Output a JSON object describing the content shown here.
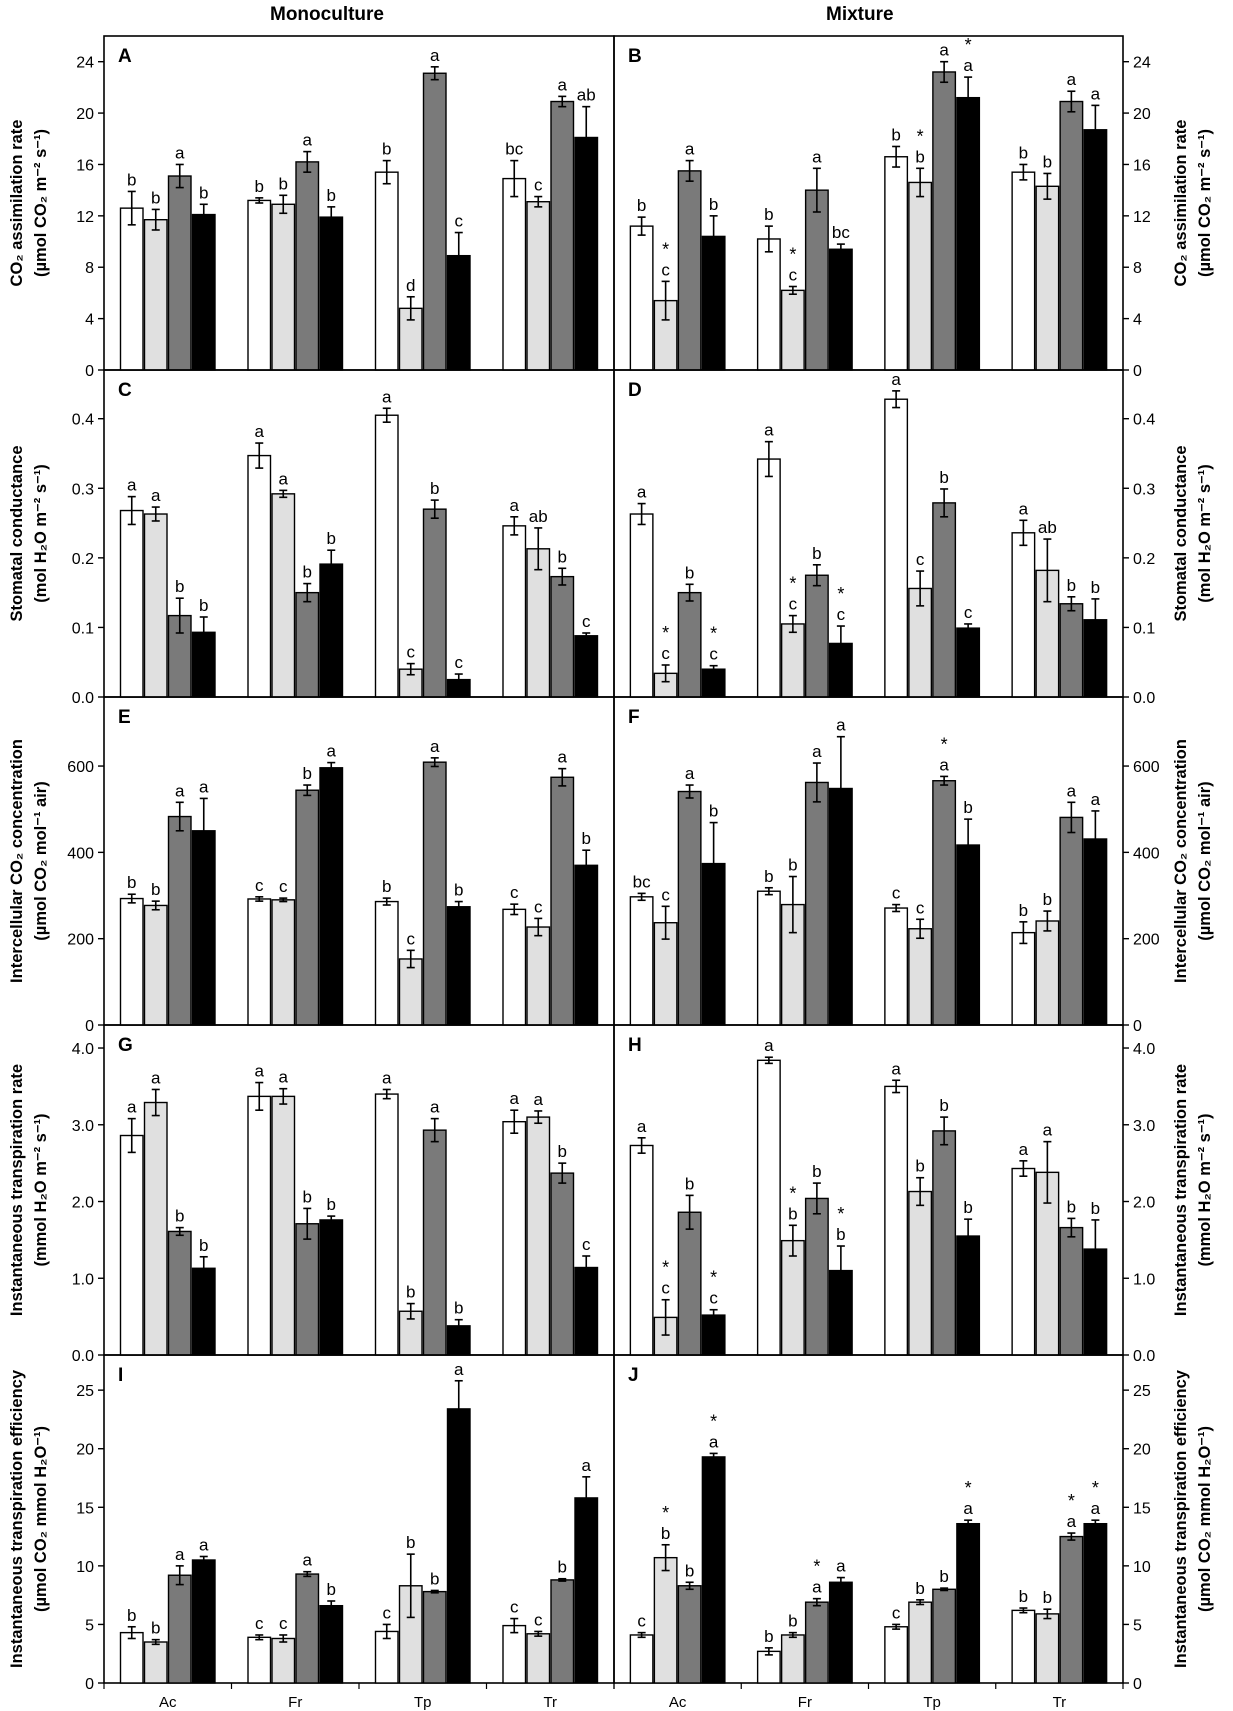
{
  "columns": [
    "Monoculture",
    "Mixture"
  ],
  "species": [
    "Ac",
    "Fr",
    "Tp",
    "Tr"
  ],
  "colors": {
    "t1": "#ffffff",
    "t2": "#e0e0e0",
    "t3": "#7a7a7a",
    "t4": "#000000",
    "axis": "#000000"
  },
  "rows": [
    {
      "ylabel": [
        "CO₂ assimilation rate",
        "(µmol CO₂ m⁻² s⁻¹)"
      ],
      "ylim": [
        0,
        26
      ],
      "ticks": [
        0,
        4,
        8,
        12,
        16,
        20,
        24
      ],
      "tick_labels": [
        "0",
        "4",
        "8",
        "12",
        "16",
        "20",
        "24"
      ]
    },
    {
      "ylabel": [
        "Stomatal conductance",
        "(mol H₂O m⁻² s⁻¹)"
      ],
      "ylim": [
        0,
        0.47
      ],
      "ticks": [
        0,
        0.1,
        0.2,
        0.3,
        0.4
      ],
      "tick_labels": [
        "0.0",
        "0.1",
        "0.2",
        "0.3",
        "0.4"
      ]
    },
    {
      "ylabel": [
        "Intercellular CO₂ concentration",
        "(µmol CO₂ mol⁻¹ air)"
      ],
      "ylim": [
        0,
        760
      ],
      "ticks": [
        0,
        200,
        400,
        600
      ],
      "tick_labels": [
        "0",
        "200",
        "400",
        "600"
      ]
    },
    {
      "ylabel": [
        "Instantaneous transpiration rate",
        "(mmol H₂O m⁻² s⁻¹)"
      ],
      "ylim": [
        0,
        4.3
      ],
      "ticks": [
        0,
        1,
        2,
        3,
        4
      ],
      "tick_labels": [
        "0.0",
        "1.0",
        "2.0",
        "3.0",
        "4.0"
      ]
    },
    {
      "ylabel": [
        "Instantaneous transpiration efficiency",
        "(µmol CO₂ mmol H₂O⁻¹)"
      ],
      "ylim": [
        0,
        28
      ],
      "ticks": [
        0,
        5,
        10,
        15,
        20,
        25
      ],
      "tick_labels": [
        "0",
        "5",
        "10",
        "15",
        "20",
        "25"
      ]
    }
  ],
  "chart_data": [
    {
      "type": "bar",
      "panel": "A",
      "row": 0,
      "col": 0,
      "categories": [
        "Ac",
        "Fr",
        "Tp",
        "Tr"
      ],
      "values": [
        [
          12.6,
          11.7,
          15.1,
          12.1
        ],
        [
          13.2,
          12.9,
          16.2,
          11.9
        ],
        [
          15.4,
          4.8,
          23.1,
          8.9
        ],
        [
          14.9,
          13.1,
          20.9,
          18.1
        ]
      ],
      "errors": [
        [
          1.3,
          0.8,
          0.9,
          0.8
        ],
        [
          0.2,
          0.7,
          0.8,
          0.8
        ],
        [
          0.9,
          0.9,
          0.5,
          1.8
        ],
        [
          1.4,
          0.4,
          0.4,
          2.4
        ]
      ],
      "letters": [
        [
          "b",
          "b",
          "a",
          "b"
        ],
        [
          "b",
          "b",
          "a",
          "b"
        ],
        [
          "b",
          "d",
          "a",
          "c"
        ],
        [
          "bc",
          "c",
          "a",
          "ab"
        ]
      ],
      "stars": [
        [
          "",
          "",
          "",
          ""
        ],
        [
          "",
          "",
          "",
          ""
        ],
        [
          "",
          "",
          "",
          ""
        ],
        [
          "",
          "",
          "",
          ""
        ]
      ]
    },
    {
      "type": "bar",
      "panel": "B",
      "row": 0,
      "col": 1,
      "categories": [
        "Ac",
        "Fr",
        "Tp",
        "Tr"
      ],
      "values": [
        [
          11.2,
          5.4,
          15.5,
          10.4
        ],
        [
          10.2,
          6.2,
          14.0,
          9.4
        ],
        [
          16.6,
          14.6,
          23.2,
          21.2
        ],
        [
          15.4,
          14.3,
          20.9,
          18.7
        ]
      ],
      "errors": [
        [
          0.7,
          1.5,
          0.8,
          1.6
        ],
        [
          1.0,
          0.3,
          1.7,
          0.4
        ],
        [
          0.8,
          1.1,
          0.8,
          1.6
        ],
        [
          0.6,
          1.0,
          0.8,
          1.9
        ]
      ],
      "letters": [
        [
          "b",
          "c",
          "a",
          "b"
        ],
        [
          "b",
          "c",
          "a",
          "bc"
        ],
        [
          "b",
          "b",
          "a",
          "a"
        ],
        [
          "b",
          "b",
          "a",
          "a"
        ]
      ],
      "stars": [
        [
          "",
          "*",
          "",
          ""
        ],
        [
          "",
          "*",
          "",
          ""
        ],
        [
          "",
          "*",
          "",
          "*"
        ],
        [
          "",
          "",
          "",
          ""
        ]
      ]
    },
    {
      "type": "bar",
      "panel": "C",
      "row": 1,
      "col": 0,
      "categories": [
        "Ac",
        "Fr",
        "Tp",
        "Tr"
      ],
      "values": [
        [
          0.268,
          0.263,
          0.117,
          0.093
        ],
        [
          0.347,
          0.292,
          0.15,
          0.191
        ],
        [
          0.405,
          0.04,
          0.27,
          0.025
        ],
        [
          0.246,
          0.213,
          0.173,
          0.088
        ]
      ],
      "errors": [
        [
          0.02,
          0.01,
          0.025,
          0.022
        ],
        [
          0.018,
          0.005,
          0.013,
          0.02
        ],
        [
          0.01,
          0.008,
          0.013,
          0.008
        ],
        [
          0.013,
          0.03,
          0.012,
          0.004
        ]
      ],
      "letters": [
        [
          "a",
          "a",
          "b",
          "b"
        ],
        [
          "a",
          "a",
          "b",
          "b"
        ],
        [
          "a",
          "c",
          "b",
          "c"
        ],
        [
          "a",
          "ab",
          "b",
          "c"
        ]
      ],
      "stars": [
        [
          "",
          "",
          "",
          ""
        ],
        [
          "",
          "",
          "",
          ""
        ],
        [
          "",
          "",
          "",
          ""
        ],
        [
          "",
          "",
          "",
          ""
        ]
      ]
    },
    {
      "type": "bar",
      "panel": "D",
      "row": 1,
      "col": 1,
      "categories": [
        "Ac",
        "Fr",
        "Tp",
        "Tr"
      ],
      "values": [
        [
          0.263,
          0.034,
          0.15,
          0.04
        ],
        [
          0.342,
          0.105,
          0.175,
          0.077
        ],
        [
          0.428,
          0.156,
          0.279,
          0.099
        ],
        [
          0.236,
          0.182,
          0.134,
          0.111
        ]
      ],
      "errors": [
        [
          0.015,
          0.012,
          0.012,
          0.005
        ],
        [
          0.025,
          0.012,
          0.015,
          0.025
        ],
        [
          0.012,
          0.025,
          0.02,
          0.006
        ],
        [
          0.018,
          0.045,
          0.01,
          0.03
        ]
      ],
      "letters": [
        [
          "a",
          "c",
          "b",
          "c"
        ],
        [
          "a",
          "c",
          "b",
          "c"
        ],
        [
          "a",
          "c",
          "b",
          "c"
        ],
        [
          "a",
          "ab",
          "b",
          "b"
        ]
      ],
      "stars": [
        [
          "",
          "*",
          "",
          "*"
        ],
        [
          "",
          "*",
          "",
          "*"
        ],
        [
          "",
          "",
          "",
          ""
        ],
        [
          "",
          "",
          "",
          ""
        ]
      ]
    },
    {
      "type": "bar",
      "panel": "E",
      "row": 2,
      "col": 0,
      "categories": [
        "Ac",
        "Fr",
        "Tp",
        "Tr"
      ],
      "values": [
        [
          293,
          277,
          483,
          450
        ],
        [
          292,
          290,
          544,
          596
        ],
        [
          286,
          153,
          609,
          274
        ],
        [
          268,
          227,
          574,
          370
        ]
      ],
      "errors": [
        [
          10,
          10,
          33,
          75
        ],
        [
          5,
          4,
          12,
          12
        ],
        [
          8,
          20,
          10,
          12
        ],
        [
          12,
          20,
          20,
          35
        ]
      ],
      "letters": [
        [
          "b",
          "b",
          "a",
          "a"
        ],
        [
          "c",
          "c",
          "b",
          "a"
        ],
        [
          "b",
          "c",
          "a",
          "b"
        ],
        [
          "c",
          "c",
          "a",
          "b"
        ]
      ],
      "stars": [
        [
          "",
          "",
          "",
          ""
        ],
        [
          "",
          "",
          "",
          ""
        ],
        [
          "",
          "",
          "",
          ""
        ],
        [
          "",
          "",
          "",
          ""
        ]
      ]
    },
    {
      "type": "bar",
      "panel": "F",
      "row": 2,
      "col": 1,
      "categories": [
        "Ac",
        "Fr",
        "Tp",
        "Tr"
      ],
      "values": [
        [
          297,
          237,
          541,
          374
        ],
        [
          310,
          279,
          562,
          548
        ],
        [
          271,
          223,
          566,
          417
        ],
        [
          214,
          241,
          481,
          431
        ]
      ],
      "errors": [
        [
          8,
          38,
          15,
          95
        ],
        [
          8,
          65,
          45,
          120
        ],
        [
          8,
          22,
          10,
          60
        ],
        [
          25,
          23,
          35,
          65
        ]
      ],
      "letters": [
        [
          "bc",
          "c",
          "a",
          "b"
        ],
        [
          "b",
          "b",
          "a",
          "a"
        ],
        [
          "c",
          "c",
          "a",
          "b"
        ],
        [
          "b",
          "b",
          "a",
          "a"
        ]
      ],
      "stars": [
        [
          "",
          "",
          "",
          ""
        ],
        [
          "",
          "",
          "",
          ""
        ],
        [
          "",
          "",
          "*",
          ""
        ],
        [
          "",
          "",
          "",
          ""
        ]
      ]
    },
    {
      "type": "bar",
      "panel": "G",
      "row": 3,
      "col": 0,
      "categories": [
        "Ac",
        "Fr",
        "Tp",
        "Tr"
      ],
      "values": [
        [
          2.86,
          3.29,
          1.61,
          1.13
        ],
        [
          3.37,
          3.37,
          1.71,
          1.76
        ],
        [
          3.4,
          0.57,
          2.93,
          0.38
        ],
        [
          3.04,
          3.1,
          2.37,
          1.14
        ]
      ],
      "errors": [
        [
          0.22,
          0.17,
          0.05,
          0.15
        ],
        [
          0.18,
          0.1,
          0.2,
          0.05
        ],
        [
          0.06,
          0.1,
          0.15,
          0.08
        ],
        [
          0.15,
          0.08,
          0.13,
          0.15
        ]
      ],
      "letters": [
        [
          "a",
          "a",
          "b",
          "b"
        ],
        [
          "a",
          "a",
          "b",
          "b"
        ],
        [
          "a",
          "b",
          "a",
          "b"
        ],
        [
          "a",
          "a",
          "b",
          "c"
        ]
      ],
      "stars": [
        [
          "",
          "",
          "",
          ""
        ],
        [
          "",
          "",
          "",
          ""
        ],
        [
          "",
          "",
          "",
          ""
        ],
        [
          "",
          "",
          "",
          ""
        ]
      ]
    },
    {
      "type": "bar",
      "panel": "H",
      "row": 3,
      "col": 1,
      "categories": [
        "Ac",
        "Fr",
        "Tp",
        "Tr"
      ],
      "values": [
        [
          2.73,
          0.49,
          1.86,
          0.52
        ],
        [
          3.84,
          1.49,
          2.04,
          1.1
        ],
        [
          3.5,
          2.13,
          2.92,
          1.55
        ],
        [
          2.43,
          2.38,
          1.66,
          1.38
        ]
      ],
      "errors": [
        [
          0.1,
          0.23,
          0.22,
          0.07
        ],
        [
          0.04,
          0.2,
          0.2,
          0.32
        ],
        [
          0.08,
          0.18,
          0.18,
          0.22
        ],
        [
          0.1,
          0.4,
          0.12,
          0.38
        ]
      ],
      "letters": [
        [
          "a",
          "c",
          "b",
          "c"
        ],
        [
          "a",
          "b",
          "b",
          "b"
        ],
        [
          "a",
          "b",
          "b",
          "b"
        ],
        [
          "a",
          "a",
          "b",
          "b"
        ]
      ],
      "stars": [
        [
          "",
          "*",
          "",
          "*"
        ],
        [
          "",
          "*",
          "",
          "*"
        ],
        [
          "",
          "",
          "",
          ""
        ],
        [
          "",
          "",
          "",
          ""
        ]
      ]
    },
    {
      "type": "bar",
      "panel": "I",
      "row": 4,
      "col": 0,
      "categories": [
        "Ac",
        "Fr",
        "Tp",
        "Tr"
      ],
      "values": [
        [
          4.3,
          3.5,
          9.2,
          10.5
        ],
        [
          3.9,
          3.8,
          9.3,
          6.6
        ],
        [
          4.4,
          8.3,
          7.8,
          23.4
        ],
        [
          4.9,
          4.2,
          8.8,
          15.8
        ]
      ],
      "errors": [
        [
          0.5,
          0.2,
          0.8,
          0.3
        ],
        [
          0.2,
          0.3,
          0.2,
          0.4
        ],
        [
          0.6,
          2.7,
          0.1,
          2.4
        ],
        [
          0.6,
          0.2,
          0.1,
          1.8
        ]
      ],
      "letters": [
        [
          "b",
          "b",
          "a",
          "a"
        ],
        [
          "c",
          "c",
          "a",
          "b"
        ],
        [
          "c",
          "b",
          "b",
          "a"
        ],
        [
          "c",
          "c",
          "b",
          "a"
        ]
      ],
      "stars": [
        [
          "",
          "",
          "",
          ""
        ],
        [
          "",
          "",
          "",
          ""
        ],
        [
          "",
          "",
          "",
          ""
        ],
        [
          "",
          "",
          "",
          ""
        ]
      ]
    },
    {
      "type": "bar",
      "panel": "J",
      "row": 4,
      "col": 1,
      "categories": [
        "Ac",
        "Fr",
        "Tp",
        "Tr"
      ],
      "values": [
        [
          4.1,
          10.7,
          8.3,
          19.3
        ],
        [
          2.7,
          4.1,
          6.9,
          8.6
        ],
        [
          4.8,
          6.9,
          8.0,
          13.6
        ],
        [
          6.2,
          5.9,
          12.5,
          13.6
        ]
      ],
      "errors": [
        [
          0.2,
          1.1,
          0.3,
          0.3
        ],
        [
          0.3,
          0.2,
          0.3,
          0.4
        ],
        [
          0.2,
          0.2,
          0.1,
          0.3
        ],
        [
          0.2,
          0.4,
          0.3,
          0.3
        ]
      ],
      "letters": [
        [
          "c",
          "b",
          "b",
          "a"
        ],
        [
          "b",
          "b",
          "a",
          "a"
        ],
        [
          "c",
          "b",
          "b",
          "a"
        ],
        [
          "b",
          "b",
          "a",
          "a"
        ]
      ],
      "stars": [
        [
          "",
          "*",
          "",
          "*"
        ],
        [
          "",
          "",
          "*",
          ""
        ],
        [
          "",
          "",
          "",
          "*"
        ],
        [
          "",
          "",
          "*",
          "*"
        ]
      ]
    }
  ]
}
